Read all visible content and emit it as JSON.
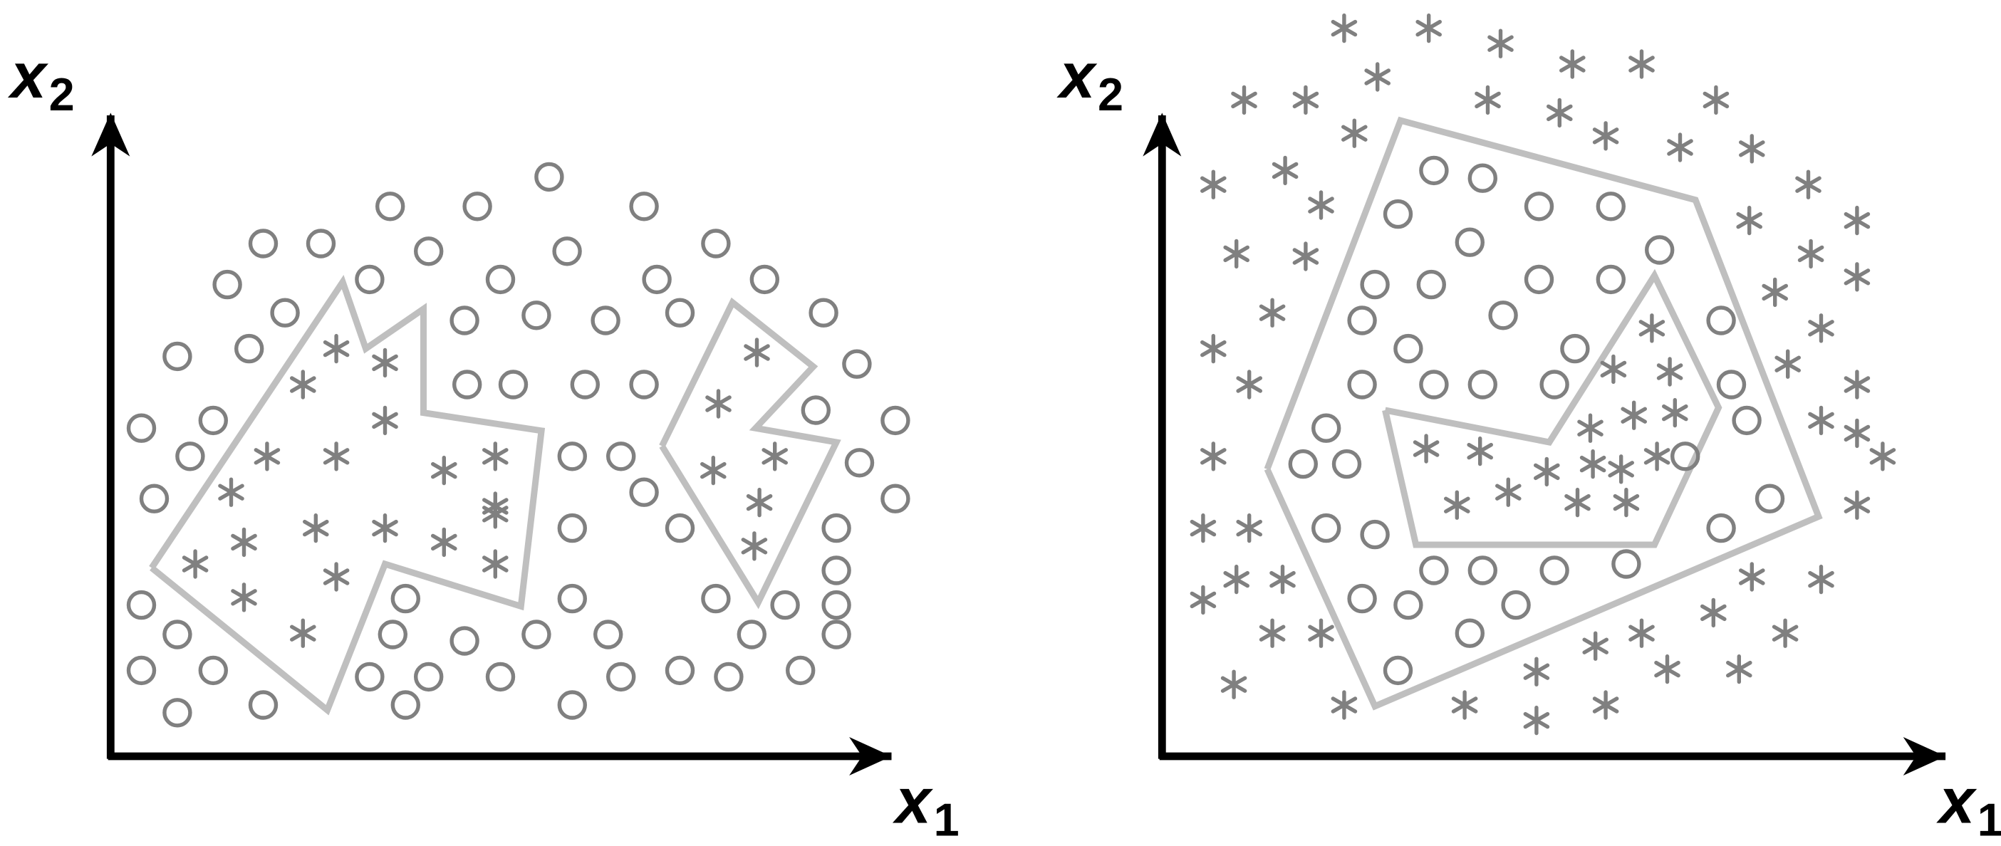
{
  "colors": {
    "axis": "#000000",
    "boundary": "#bfbfbf",
    "marker": "#808080",
    "background": "#ffffff"
  },
  "panels": [
    {
      "id": "left",
      "x_label": {
        "main": "x",
        "sub": "1"
      },
      "y_label": {
        "main": "x",
        "sub": "2"
      },
      "circle_marker": "circle-icon",
      "star_marker": "asterisk-icon",
      "circles": [
        [
          428,
          138
        ],
        [
          304,
          161
        ],
        [
          372,
          161
        ],
        [
          502,
          161
        ],
        [
          205,
          190
        ],
        [
          250,
          190
        ],
        [
          334,
          196
        ],
        [
          442,
          196
        ],
        [
          558,
          190
        ],
        [
          177,
          222
        ],
        [
          288,
          218
        ],
        [
          390,
          218
        ],
        [
          512,
          218
        ],
        [
          596,
          218
        ],
        [
          222,
          244
        ],
        [
          362,
          250
        ],
        [
          418,
          246
        ],
        [
          472,
          250
        ],
        [
          530,
          244
        ],
        [
          642,
          244
        ],
        [
          138,
          278
        ],
        [
          194,
          272
        ],
        [
          668,
          284
        ],
        [
          364,
          300
        ],
        [
          400,
          300
        ],
        [
          456,
          300
        ],
        [
          502,
          300
        ],
        [
          110,
          334
        ],
        [
          166,
          328
        ],
        [
          636,
          320
        ],
        [
          698,
          328
        ],
        [
          148,
          356
        ],
        [
          446,
          356
        ],
        [
          484,
          356
        ],
        [
          670,
          361
        ],
        [
          120,
          389
        ],
        [
          502,
          384
        ],
        [
          698,
          389
        ],
        [
          446,
          412
        ],
        [
          530,
          412
        ],
        [
          652,
          412
        ],
        [
          652,
          445
        ],
        [
          110,
          472
        ],
        [
          316,
          467
        ],
        [
          446,
          467
        ],
        [
          558,
          467
        ],
        [
          612,
          472
        ],
        [
          652,
          472
        ],
        [
          138,
          495
        ],
        [
          306,
          495
        ],
        [
          362,
          500
        ],
        [
          418,
          495
        ],
        [
          474,
          495
        ],
        [
          586,
          495
        ],
        [
          652,
          495
        ],
        [
          110,
          523
        ],
        [
          166,
          523
        ],
        [
          288,
          528
        ],
        [
          334,
          528
        ],
        [
          390,
          528
        ],
        [
          484,
          528
        ],
        [
          530,
          523
        ],
        [
          568,
          528
        ],
        [
          624,
          523
        ],
        [
          138,
          556
        ],
        [
          205,
          550
        ],
        [
          316,
          550
        ],
        [
          446,
          550
        ]
      ],
      "stars": [
        [
          262,
          272
        ],
        [
          300,
          283
        ],
        [
          236,
          300
        ],
        [
          590,
          275
        ],
        [
          300,
          328
        ],
        [
          560,
          315
        ],
        [
          208,
          356
        ],
        [
          262,
          356
        ],
        [
          346,
          367
        ],
        [
          386,
          356
        ],
        [
          556,
          367
        ],
        [
          604,
          356
        ],
        [
          180,
          384
        ],
        [
          386,
          395
        ],
        [
          592,
          392
        ],
        [
          246,
          412
        ],
        [
          300,
          412
        ],
        [
          346,
          423
        ],
        [
          386,
          401
        ],
        [
          190,
          423
        ],
        [
          152,
          440
        ],
        [
          262,
          450
        ],
        [
          386,
          440
        ],
        [
          588,
          426
        ],
        [
          190,
          466
        ],
        [
          236,
          494
        ]
      ],
      "boundaries": [
        [
          [
            118,
            443
          ],
          [
            267,
            220
          ],
          [
            285,
            272
          ],
          [
            330,
            241
          ],
          [
            330,
            322
          ],
          [
            422,
            336
          ],
          [
            406,
            473
          ],
          [
            300,
            440
          ],
          [
            255,
            554
          ],
          [
            118,
            443
          ]
        ],
        [
          [
            516,
            348
          ],
          [
            571,
            236
          ],
          [
            634,
            286
          ],
          [
            589,
            334
          ],
          [
            652,
            345
          ],
          [
            591,
            470
          ],
          [
            516,
            348
          ]
        ]
      ]
    },
    {
      "id": "right",
      "x_label": {
        "main": "x",
        "sub": "1"
      },
      "y_label": {
        "main": "x",
        "sub": "2"
      },
      "circle_marker": "circle-icon",
      "star_marker": "asterisk-icon",
      "circles": [
        [
          1118,
          133
        ],
        [
          1156,
          139
        ],
        [
          1090,
          167
        ],
        [
          1200,
          161
        ],
        [
          1256,
          161
        ],
        [
          1146,
          189
        ],
        [
          1294,
          195
        ],
        [
          1072,
          222
        ],
        [
          1116,
          222
        ],
        [
          1200,
          218
        ],
        [
          1256,
          218
        ],
        [
          1062,
          250
        ],
        [
          1172,
          246
        ],
        [
          1228,
          272
        ],
        [
          1342,
          250
        ],
        [
          1098,
          272
        ],
        [
          1062,
          300
        ],
        [
          1118,
          300
        ],
        [
          1156,
          300
        ],
        [
          1212,
          300
        ],
        [
          1350,
          300
        ],
        [
          1034,
          334
        ],
        [
          1362,
          328
        ],
        [
          1016,
          362
        ],
        [
          1050,
          362
        ],
        [
          1314,
          356
        ],
        [
          1380,
          389
        ],
        [
          1034,
          412
        ],
        [
          1072,
          417
        ],
        [
          1342,
          412
        ],
        [
          1118,
          445
        ],
        [
          1156,
          445
        ],
        [
          1212,
          445
        ],
        [
          1268,
          440
        ],
        [
          1062,
          467
        ],
        [
          1098,
          472
        ],
        [
          1182,
          472
        ],
        [
          1146,
          494
        ],
        [
          1090,
          523
        ]
      ],
      "stars": [
        [
          1048,
          22
        ],
        [
          1114,
          22
        ],
        [
          1170,
          34
        ],
        [
          1226,
          50
        ],
        [
          1280,
          50
        ],
        [
          970,
          78
        ],
        [
          1018,
          78
        ],
        [
          1074,
          60
        ],
        [
          1160,
          78
        ],
        [
          1216,
          88
        ],
        [
          1338,
          78
        ],
        [
          1056,
          104
        ],
        [
          1252,
          106
        ],
        [
          1310,
          115
        ],
        [
          1366,
          116
        ],
        [
          946,
          144
        ],
        [
          1002,
          133
        ],
        [
          1030,
          160
        ],
        [
          1410,
          144
        ],
        [
          1364,
          172
        ],
        [
          1448,
          172
        ],
        [
          964,
          198
        ],
        [
          1018,
          200
        ],
        [
          1412,
          198
        ],
        [
          1384,
          228
        ],
        [
          1448,
          216
        ],
        [
          992,
          244
        ],
        [
          1420,
          256
        ],
        [
          946,
          272
        ],
        [
          1394,
          284
        ],
        [
          974,
          300
        ],
        [
          1448,
          300
        ],
        [
          1288,
          256
        ],
        [
          1258,
          288
        ],
        [
          1302,
          290
        ],
        [
          1240,
          334
        ],
        [
          1274,
          324
        ],
        [
          1306,
          322
        ],
        [
          1420,
          328
        ],
        [
          1112,
          350
        ],
        [
          1154,
          352
        ],
        [
          1242,
          362
        ],
        [
          1292,
          356
        ],
        [
          1448,
          338
        ],
        [
          1468,
          356
        ],
        [
          946,
          356
        ],
        [
          1206,
          368
        ],
        [
          1264,
          366
        ],
        [
          1136,
          394
        ],
        [
          1176,
          384
        ],
        [
          1230,
          392
        ],
        [
          1268,
          392
        ],
        [
          938,
          412
        ],
        [
          974,
          412
        ],
        [
          1448,
          394
        ],
        [
          964,
          452
        ],
        [
          1000,
          452
        ],
        [
          1420,
          452
        ],
        [
          1366,
          450
        ],
        [
          938,
          468
        ],
        [
          1336,
          478
        ],
        [
          1280,
          494
        ],
        [
          1392,
          494
        ],
        [
          992,
          494
        ],
        [
          1030,
          494
        ],
        [
          1244,
          504
        ],
        [
          962,
          534
        ],
        [
          1198,
          524
        ],
        [
          1300,
          522
        ],
        [
          1356,
          522
        ],
        [
          1048,
          550
        ],
        [
          1142,
          550
        ],
        [
          1252,
          550
        ],
        [
          1198,
          562
        ]
      ],
      "boundaries": [
        [
          [
            988,
            366
          ],
          [
            1092,
            94
          ],
          [
            1322,
            156
          ],
          [
            1418,
            403
          ],
          [
            1072,
            551
          ],
          [
            988,
            366
          ]
        ],
        [
          [
            1080,
            320
          ],
          [
            1208,
            345
          ],
          [
            1290,
            215
          ],
          [
            1340,
            318
          ],
          [
            1290,
            425
          ],
          [
            1104,
            425
          ],
          [
            1080,
            320
          ]
        ]
      ]
    }
  ]
}
